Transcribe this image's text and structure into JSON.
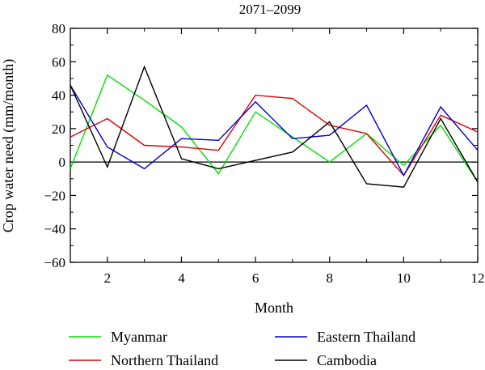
{
  "chart_data": {
    "type": "line",
    "title": "2071–2099",
    "xlabel": "Month",
    "ylabel": "Crop water need (mm/month)",
    "xlim": [
      1,
      12
    ],
    "ylim": [
      -60,
      80
    ],
    "x_ticks": [
      2,
      4,
      6,
      8,
      10,
      12
    ],
    "y_ticks": [
      -60,
      -40,
      -20,
      0,
      20,
      40,
      60,
      80
    ],
    "x_tick_labels": [
      "2",
      "4",
      "6",
      "8",
      "10",
      "12"
    ],
    "y_tick_labels": [
      "−60",
      "−40",
      "−20",
      "0",
      "20",
      "40",
      "60",
      "80"
    ],
    "zero_line": true,
    "grid": false,
    "legend_position": "bottom",
    "x": [
      1,
      2,
      3,
      4,
      5,
      6,
      7,
      8,
      9,
      10,
      11,
      12
    ],
    "series": [
      {
        "name": "Myanmar",
        "color": "#00e000",
        "values": [
          -4,
          52,
          37,
          21,
          -7,
          30,
          15,
          0,
          17,
          -2,
          22,
          -12
        ]
      },
      {
        "name": "Northern Thailand",
        "color": "#e00000",
        "values": [
          15,
          26,
          10,
          9,
          7,
          40,
          38,
          22,
          17,
          -8,
          28,
          18
        ]
      },
      {
        "name": "Eastern Thailand",
        "color": "#0000d0",
        "values": [
          46,
          9,
          -4,
          14,
          13,
          36,
          14,
          16,
          34,
          -8,
          33,
          7
        ]
      },
      {
        "name": "Cambodia",
        "color": "#000000",
        "values": [
          46,
          -3,
          57,
          2,
          -4,
          1,
          6,
          24,
          -13,
          -15,
          26,
          -12
        ]
      }
    ],
    "legend": {
      "left_column": [
        "Myanmar",
        "Northern Thailand"
      ],
      "right_column": [
        "Eastern Thailand",
        "Cambodia"
      ]
    }
  }
}
